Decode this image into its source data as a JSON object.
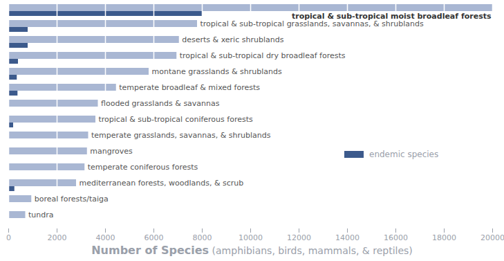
{
  "chart_data": {
    "type": "bar",
    "orientation": "horizontal",
    "x_label": "Number of Species (amphibians, birds, mammals, & reptiles)",
    "categories": [
      "tropical & sub-tropical moist broadleaf forests",
      "tropical & sub-tropical grasslands, savannas, & shrublands",
      "deserts & xeric shrublands",
      "tropical & sub-tropical dry broadleaf forests",
      "montane grasslands & shrublands",
      "temperate broadleaf & mixed forests",
      "flooded grasslands & savannas",
      "tropical & sub-tropical coniferous forests",
      "temperate grasslands, savannas, & shrublands",
      "mangroves",
      "temperate coniferous forests",
      "mediterranean forests, woodlands, & scrub",
      "boreal forests/taiga",
      "tundra"
    ],
    "series": [
      {
        "color": "#a9b7d3",
        "values": [
          20000,
          7800,
          7050,
          6950,
          5800,
          4450,
          3700,
          3600,
          3300,
          3250,
          3150,
          2800,
          950,
          700
        ]
      },
      {
        "name": "endemic species",
        "color": "#3c5a8c",
        "values": [
          8000,
          800,
          800,
          400,
          350,
          380,
          0,
          200,
          0,
          0,
          0,
          250,
          0,
          0
        ]
      }
    ],
    "xlim": [
      0,
      20000
    ],
    "xticks": [
      0,
      2000,
      4000,
      6000,
      8000,
      10000,
      12000,
      14000,
      16000,
      18000,
      20000
    ],
    "grid": true,
    "legend": "right",
    "tick_labels": "x"
  }
}
